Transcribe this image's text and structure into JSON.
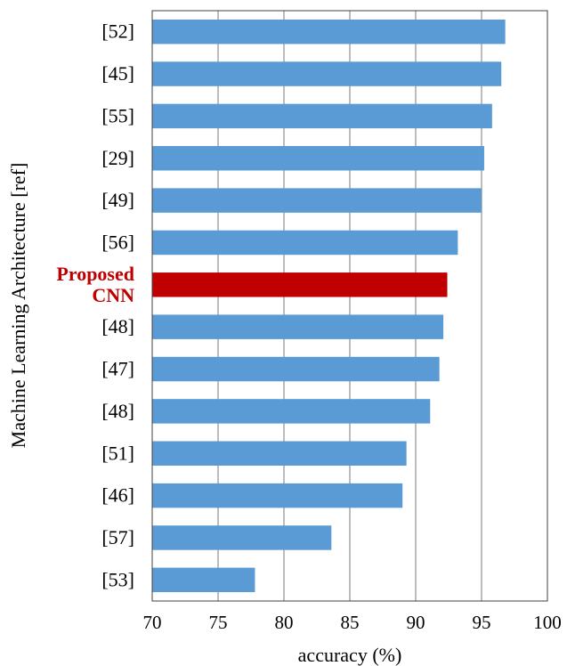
{
  "chart_data": {
    "type": "bar",
    "orientation": "horizontal",
    "title": "",
    "xlabel": "accuracy (%)",
    "ylabel": "Machine Learning Architecture [ref]",
    "xlim": [
      70,
      100
    ],
    "xticks": [
      "70",
      "75",
      "80",
      "85",
      "90",
      "95",
      "100"
    ],
    "grid": "vertical",
    "legend": "none",
    "categories": [
      "[52]",
      "[45]",
      "[55]",
      "[29]",
      "[49]",
      "[56]",
      "Proposed CNN",
      "[48]",
      "[47]",
      "[48]",
      "[51]",
      "[46]",
      "[57]",
      "[53]"
    ],
    "values": [
      96.8,
      96.5,
      95.8,
      95.2,
      95.0,
      93.2,
      92.4,
      92.1,
      91.8,
      91.1,
      89.3,
      89.0,
      83.6,
      77.8
    ],
    "highlight_index": 6,
    "colors": {
      "bar": "#5B9BD5",
      "highlight": "#C00000",
      "grid": "#A6A6A6",
      "axis": "#404040",
      "text": "#000000"
    }
  }
}
